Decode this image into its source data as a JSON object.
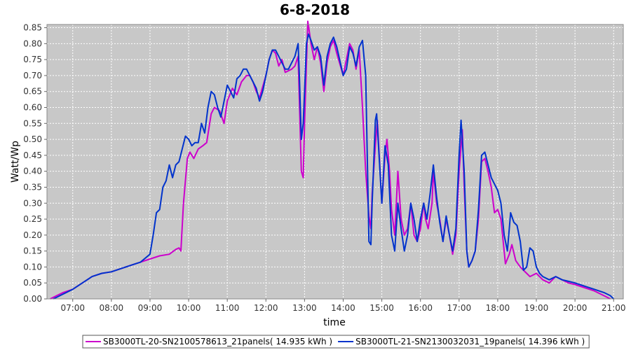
{
  "chart_data": {
    "type": "line",
    "title": "6-8-2018",
    "xlabel": "time",
    "ylabel": "Watt/Wp",
    "xlim": [
      "06:20",
      "21:15"
    ],
    "ylim": [
      0,
      0.86
    ],
    "x_ticks": [
      "07:00",
      "08:00",
      "09:00",
      "10:00",
      "11:00",
      "12:00",
      "13:00",
      "14:00",
      "15:00",
      "16:00",
      "17:00",
      "18:00",
      "19:00",
      "20:00",
      "21:00"
    ],
    "y_ticks": [
      "0.00",
      "0.05",
      "0.10",
      "0.15",
      "0.20",
      "0.25",
      "0.30",
      "0.35",
      "0.40",
      "0.45",
      "0.50",
      "0.55",
      "0.60",
      "0.65",
      "0.70",
      "0.75",
      "0.80",
      "0.85"
    ],
    "grid": true,
    "plot_background": "#c8c8c8",
    "legend_position": "bottom",
    "series": [
      {
        "name": "SB3000TL-20-SN2100578613_21panels( 14.935 kWh )",
        "color": "#cc00cc",
        "points": [
          [
            "06:25",
            0.0
          ],
          [
            "06:35",
            0.01
          ],
          [
            "06:45",
            0.02
          ],
          [
            "07:00",
            0.03
          ],
          [
            "07:15",
            0.05
          ],
          [
            "07:30",
            0.07
          ],
          [
            "07:45",
            0.08
          ],
          [
            "08:00",
            0.085
          ],
          [
            "08:15",
            0.095
          ],
          [
            "08:30",
            0.105
          ],
          [
            "08:45",
            0.115
          ],
          [
            "09:00",
            0.125
          ],
          [
            "09:15",
            0.135
          ],
          [
            "09:30",
            0.14
          ],
          [
            "09:40",
            0.155
          ],
          [
            "09:45",
            0.16
          ],
          [
            "09:48",
            0.15
          ],
          [
            "09:52",
            0.3
          ],
          [
            "09:58",
            0.44
          ],
          [
            "10:02",
            0.46
          ],
          [
            "10:08",
            0.44
          ],
          [
            "10:15",
            0.47
          ],
          [
            "10:22",
            0.48
          ],
          [
            "10:28",
            0.49
          ],
          [
            "10:35",
            0.58
          ],
          [
            "10:40",
            0.6
          ],
          [
            "10:48",
            0.59
          ],
          [
            "10:55",
            0.55
          ],
          [
            "11:00",
            0.62
          ],
          [
            "11:08",
            0.66
          ],
          [
            "11:15",
            0.64
          ],
          [
            "11:22",
            0.68
          ],
          [
            "11:30",
            0.7
          ],
          [
            "11:35",
            0.7
          ],
          [
            "11:40",
            0.68
          ],
          [
            "11:45",
            0.65
          ],
          [
            "11:50",
            0.63
          ],
          [
            "12:00",
            0.7
          ],
          [
            "12:05",
            0.75
          ],
          [
            "12:10",
            0.78
          ],
          [
            "12:15",
            0.77
          ],
          [
            "12:20",
            0.73
          ],
          [
            "12:25",
            0.75
          ],
          [
            "12:30",
            0.71
          ],
          [
            "12:40",
            0.72
          ],
          [
            "12:45",
            0.73
          ],
          [
            "12:50",
            0.76
          ],
          [
            "12:52",
            0.62
          ],
          [
            "12:55",
            0.4
          ],
          [
            "12:58",
            0.38
          ],
          [
            "13:00",
            0.55
          ],
          [
            "13:05",
            0.87
          ],
          [
            "13:08",
            0.83
          ],
          [
            "13:10",
            0.8
          ],
          [
            "13:15",
            0.75
          ],
          [
            "13:20",
            0.79
          ],
          [
            "13:25",
            0.74
          ],
          [
            "13:30",
            0.65
          ],
          [
            "13:35",
            0.74
          ],
          [
            "13:40",
            0.79
          ],
          [
            "13:45",
            0.81
          ],
          [
            "13:50",
            0.77
          ],
          [
            "14:00",
            0.7
          ],
          [
            "14:05",
            0.75
          ],
          [
            "14:10",
            0.8
          ],
          [
            "14:15",
            0.78
          ],
          [
            "14:20",
            0.72
          ],
          [
            "14:25",
            0.78
          ],
          [
            "14:30",
            0.6
          ],
          [
            "14:35",
            0.4
          ],
          [
            "14:40",
            0.26
          ],
          [
            "14:43",
            0.22
          ],
          [
            "14:45",
            0.33
          ],
          [
            "14:50",
            0.48
          ],
          [
            "14:53",
            0.56
          ],
          [
            "14:56",
            0.45
          ],
          [
            "15:00",
            0.3
          ],
          [
            "15:05",
            0.45
          ],
          [
            "15:08",
            0.5
          ],
          [
            "15:12",
            0.4
          ],
          [
            "15:15",
            0.28
          ],
          [
            "15:20",
            0.2
          ],
          [
            "15:25",
            0.4
          ],
          [
            "15:30",
            0.25
          ],
          [
            "15:35",
            0.2
          ],
          [
            "15:40",
            0.22
          ],
          [
            "15:45",
            0.3
          ],
          [
            "15:50",
            0.2
          ],
          [
            "15:55",
            0.18
          ],
          [
            "16:00",
            0.22
          ],
          [
            "16:05",
            0.3
          ],
          [
            "16:08",
            0.25
          ],
          [
            "16:12",
            0.22
          ],
          [
            "16:18",
            0.3
          ],
          [
            "16:20",
            0.4
          ],
          [
            "16:25",
            0.3
          ],
          [
            "16:30",
            0.25
          ],
          [
            "16:35",
            0.18
          ],
          [
            "16:40",
            0.25
          ],
          [
            "16:45",
            0.2
          ],
          [
            "16:50",
            0.14
          ],
          [
            "16:55",
            0.2
          ],
          [
            "17:00",
            0.4
          ],
          [
            "17:05",
            0.53
          ],
          [
            "17:08",
            0.35
          ],
          [
            "17:12",
            0.15
          ],
          [
            "17:15",
            0.1
          ],
          [
            "17:20",
            0.12
          ],
          [
            "17:25",
            0.15
          ],
          [
            "17:30",
            0.25
          ],
          [
            "17:35",
            0.43
          ],
          [
            "17:40",
            0.44
          ],
          [
            "17:45",
            0.4
          ],
          [
            "17:50",
            0.35
          ],
          [
            "17:55",
            0.27
          ],
          [
            "18:00",
            0.28
          ],
          [
            "18:05",
            0.25
          ],
          [
            "18:10",
            0.15
          ],
          [
            "18:12",
            0.11
          ],
          [
            "18:18",
            0.14
          ],
          [
            "18:22",
            0.17
          ],
          [
            "18:28",
            0.12
          ],
          [
            "18:35",
            0.1
          ],
          [
            "18:40",
            0.09
          ],
          [
            "18:45",
            0.08
          ],
          [
            "18:50",
            0.07
          ],
          [
            "19:00",
            0.08
          ],
          [
            "19:10",
            0.06
          ],
          [
            "19:20",
            0.05
          ],
          [
            "19:30",
            0.07
          ],
          [
            "19:40",
            0.06
          ],
          [
            "19:50",
            0.05
          ],
          [
            "20:00",
            0.045
          ],
          [
            "20:15",
            0.035
          ],
          [
            "20:30",
            0.025
          ],
          [
            "20:45",
            0.01
          ],
          [
            "20:55",
            0.0
          ]
        ]
      },
      {
        "name": "SB3000TL-21-SN2130032031_19panels( 14.396 kWh )",
        "color": "#0033cc",
        "points": [
          [
            "06:30",
            0.0
          ],
          [
            "06:40",
            0.01
          ],
          [
            "06:50",
            0.02
          ],
          [
            "07:00",
            0.03
          ],
          [
            "07:15",
            0.05
          ],
          [
            "07:30",
            0.07
          ],
          [
            "07:45",
            0.08
          ],
          [
            "08:00",
            0.085
          ],
          [
            "08:15",
            0.095
          ],
          [
            "08:30",
            0.105
          ],
          [
            "08:45",
            0.115
          ],
          [
            "09:00",
            0.14
          ],
          [
            "09:05",
            0.2
          ],
          [
            "09:10",
            0.27
          ],
          [
            "09:15",
            0.28
          ],
          [
            "09:20",
            0.35
          ],
          [
            "09:25",
            0.37
          ],
          [
            "09:30",
            0.42
          ],
          [
            "09:35",
            0.38
          ],
          [
            "09:40",
            0.42
          ],
          [
            "09:45",
            0.43
          ],
          [
            "09:50",
            0.47
          ],
          [
            "09:55",
            0.51
          ],
          [
            "10:00",
            0.5
          ],
          [
            "10:05",
            0.48
          ],
          [
            "10:10",
            0.49
          ],
          [
            "10:15",
            0.49
          ],
          [
            "10:20",
            0.55
          ],
          [
            "10:25",
            0.52
          ],
          [
            "10:30",
            0.6
          ],
          [
            "10:35",
            0.65
          ],
          [
            "10:40",
            0.64
          ],
          [
            "10:45",
            0.6
          ],
          [
            "10:50",
            0.57
          ],
          [
            "10:55",
            0.62
          ],
          [
            "11:00",
            0.67
          ],
          [
            "11:05",
            0.65
          ],
          [
            "11:10",
            0.63
          ],
          [
            "11:15",
            0.69
          ],
          [
            "11:20",
            0.7
          ],
          [
            "11:25",
            0.72
          ],
          [
            "11:30",
            0.72
          ],
          [
            "11:35",
            0.7
          ],
          [
            "11:40",
            0.68
          ],
          [
            "11:45",
            0.66
          ],
          [
            "11:50",
            0.62
          ],
          [
            "11:55",
            0.65
          ],
          [
            "12:00",
            0.7
          ],
          [
            "12:05",
            0.75
          ],
          [
            "12:10",
            0.78
          ],
          [
            "12:15",
            0.78
          ],
          [
            "12:20",
            0.76
          ],
          [
            "12:25",
            0.74
          ],
          [
            "12:30",
            0.72
          ],
          [
            "12:35",
            0.72
          ],
          [
            "12:40",
            0.74
          ],
          [
            "12:45",
            0.76
          ],
          [
            "12:50",
            0.8
          ],
          [
            "12:52",
            0.7
          ],
          [
            "12:55",
            0.5
          ],
          [
            "12:58",
            0.55
          ],
          [
            "13:00",
            0.65
          ],
          [
            "13:03",
            0.8
          ],
          [
            "13:06",
            0.83
          ],
          [
            "13:10",
            0.81
          ],
          [
            "13:15",
            0.78
          ],
          [
            "13:20",
            0.79
          ],
          [
            "13:25",
            0.76
          ],
          [
            "13:30",
            0.67
          ],
          [
            "13:35",
            0.76
          ],
          [
            "13:40",
            0.8
          ],
          [
            "13:45",
            0.82
          ],
          [
            "13:50",
            0.79
          ],
          [
            "14:00",
            0.7
          ],
          [
            "14:05",
            0.72
          ],
          [
            "14:10",
            0.79
          ],
          [
            "14:15",
            0.77
          ],
          [
            "14:20",
            0.73
          ],
          [
            "14:25",
            0.79
          ],
          [
            "14:30",
            0.81
          ],
          [
            "14:35",
            0.7
          ],
          [
            "14:40",
            0.18
          ],
          [
            "14:43",
            0.17
          ],
          [
            "14:45",
            0.3
          ],
          [
            "14:50",
            0.56
          ],
          [
            "14:52",
            0.58
          ],
          [
            "14:56",
            0.44
          ],
          [
            "15:00",
            0.3
          ],
          [
            "15:05",
            0.48
          ],
          [
            "15:10",
            0.42
          ],
          [
            "15:15",
            0.2
          ],
          [
            "15:20",
            0.15
          ],
          [
            "15:25",
            0.3
          ],
          [
            "15:30",
            0.22
          ],
          [
            "15:35",
            0.15
          ],
          [
            "15:40",
            0.2
          ],
          [
            "15:45",
            0.3
          ],
          [
            "15:50",
            0.25
          ],
          [
            "15:55",
            0.18
          ],
          [
            "16:00",
            0.25
          ],
          [
            "16:05",
            0.3
          ],
          [
            "16:10",
            0.25
          ],
          [
            "16:15",
            0.33
          ],
          [
            "16:20",
            0.42
          ],
          [
            "16:25",
            0.32
          ],
          [
            "16:30",
            0.24
          ],
          [
            "16:35",
            0.18
          ],
          [
            "16:40",
            0.26
          ],
          [
            "16:45",
            0.2
          ],
          [
            "16:50",
            0.15
          ],
          [
            "16:55",
            0.22
          ],
          [
            "17:00",
            0.45
          ],
          [
            "17:03",
            0.56
          ],
          [
            "17:08",
            0.4
          ],
          [
            "17:12",
            0.15
          ],
          [
            "17:15",
            0.1
          ],
          [
            "17:20",
            0.12
          ],
          [
            "17:25",
            0.15
          ],
          [
            "17:30",
            0.28
          ],
          [
            "17:35",
            0.45
          ],
          [
            "17:40",
            0.46
          ],
          [
            "17:45",
            0.42
          ],
          [
            "17:50",
            0.38
          ],
          [
            "17:55",
            0.36
          ],
          [
            "18:00",
            0.34
          ],
          [
            "18:05",
            0.3
          ],
          [
            "18:10",
            0.2
          ],
          [
            "18:15",
            0.15
          ],
          [
            "18:20",
            0.27
          ],
          [
            "18:25",
            0.24
          ],
          [
            "18:30",
            0.23
          ],
          [
            "18:35",
            0.18
          ],
          [
            "18:40",
            0.09
          ],
          [
            "18:45",
            0.1
          ],
          [
            "18:50",
            0.16
          ],
          [
            "18:55",
            0.15
          ],
          [
            "19:00",
            0.1
          ],
          [
            "19:05",
            0.08
          ],
          [
            "19:10",
            0.07
          ],
          [
            "19:20",
            0.06
          ],
          [
            "19:30",
            0.07
          ],
          [
            "19:40",
            0.06
          ],
          [
            "19:50",
            0.055
          ],
          [
            "20:00",
            0.05
          ],
          [
            "20:15",
            0.04
          ],
          [
            "20:30",
            0.03
          ],
          [
            "20:45",
            0.02
          ],
          [
            "20:55",
            0.01
          ],
          [
            "21:00",
            0.0
          ]
        ]
      }
    ]
  }
}
